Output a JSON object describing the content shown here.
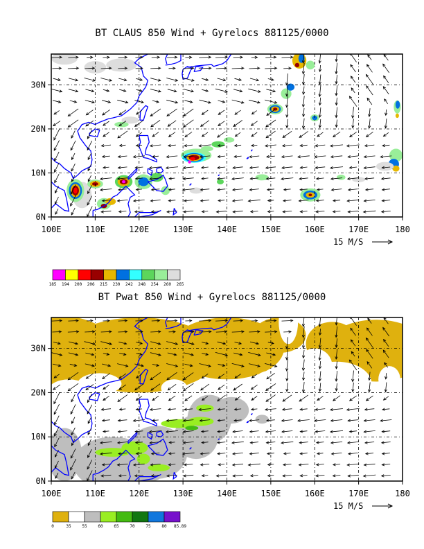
{
  "chart_data": [
    {
      "type": "map",
      "title": "BT CLAUS 850 Wind + Gyrelocs 881125/0000",
      "x_ticks": [
        "100E",
        "110E",
        "120E",
        "130E",
        "140E",
        "150E",
        "160E",
        "170E",
        "180"
      ],
      "y_ticks": [
        "0N",
        "10N",
        "20N",
        "30N"
      ],
      "xlim": [
        100,
        180
      ],
      "ylim": [
        0,
        37
      ],
      "vector_reference": "15 M/S",
      "colorbar": {
        "labels": [
          "185",
          "194",
          "200",
          "206",
          "215",
          "230",
          "242",
          "248",
          "254",
          "260",
          "265"
        ],
        "colors": [
          "#ff00ff",
          "#ffff00",
          "#ff0000",
          "#990000",
          "#e6b800",
          "#0070e0",
          "#33ffff",
          "#5cd65c",
          "#99ee99",
          "#dddddd"
        ]
      }
    },
    {
      "type": "map",
      "title": "BT Pwat 850 Wind + Gyrelocs 881125/0000",
      "x_ticks": [
        "100E",
        "110E",
        "120E",
        "130E",
        "140E",
        "150E",
        "160E",
        "170E",
        "180"
      ],
      "y_ticks": [
        "0N",
        "10N",
        "20N",
        "30N"
      ],
      "xlim": [
        100,
        180
      ],
      "ylim": [
        0,
        37
      ],
      "vector_reference": "15 M/S",
      "colorbar": {
        "labels": [
          "0",
          "35",
          "55",
          "60",
          "65",
          "70",
          "75",
          "80",
          "85.89"
        ],
        "colors": [
          "#dfb10e",
          "#ffffff",
          "#bebebe",
          "#99ee22",
          "#44bb11",
          "#117711",
          "#1177dd",
          "#7711cc"
        ]
      }
    }
  ]
}
